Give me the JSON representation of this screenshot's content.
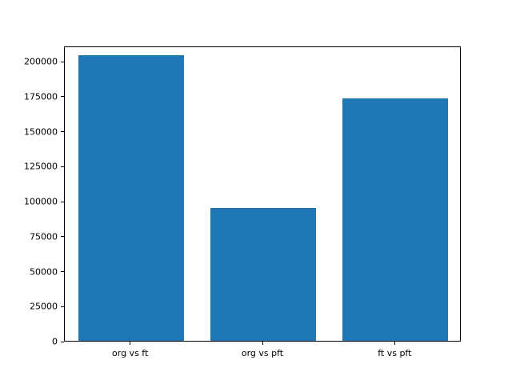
{
  "chart_data": {
    "type": "bar",
    "categories": [
      "org vs ft",
      "org vs pft",
      "ft vs pft"
    ],
    "values": [
      204000,
      95000,
      173000
    ],
    "title": "",
    "xlabel": "",
    "ylabel": "",
    "ylim": [
      0,
      211000
    ],
    "yticks": [
      0,
      25000,
      50000,
      75000,
      100000,
      125000,
      150000,
      175000,
      200000
    ],
    "bar_color": "#1f77b4",
    "bar_width_fraction": 0.8,
    "grid": false,
    "legend": null,
    "axis_color": "#000000",
    "background_color": "#ffffff"
  }
}
